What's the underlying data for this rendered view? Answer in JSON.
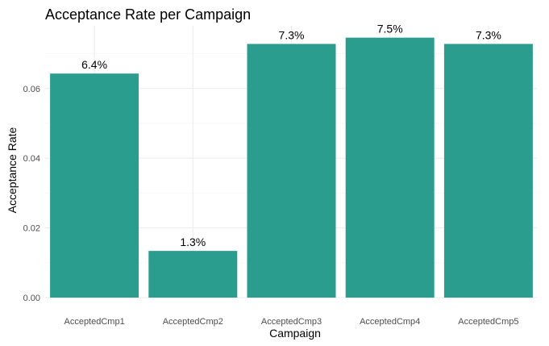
{
  "chart_data": {
    "type": "bar",
    "title": "Acceptance Rate per Campaign",
    "xlabel": "Campaign",
    "ylabel": "Acceptance Rate",
    "categories": [
      "AcceptedCmp1",
      "AcceptedCmp2",
      "AcceptedCmp3",
      "AcceptedCmp4",
      "AcceptedCmp5"
    ],
    "values": [
      0.0643,
      0.0134,
      0.0728,
      0.0746,
      0.0728
    ],
    "data_labels": [
      "6.4%",
      "1.3%",
      "7.3%",
      "7.5%",
      "7.3%"
    ],
    "ylim": [
      0,
      0.078
    ],
    "y_ticks": [
      0.0,
      0.02,
      0.04,
      0.06
    ],
    "y_tick_labels": [
      "0.00",
      "0.02",
      "0.04",
      "0.06"
    ],
    "grid": true,
    "legend": "none",
    "bar_color": "#2a9d8f"
  }
}
